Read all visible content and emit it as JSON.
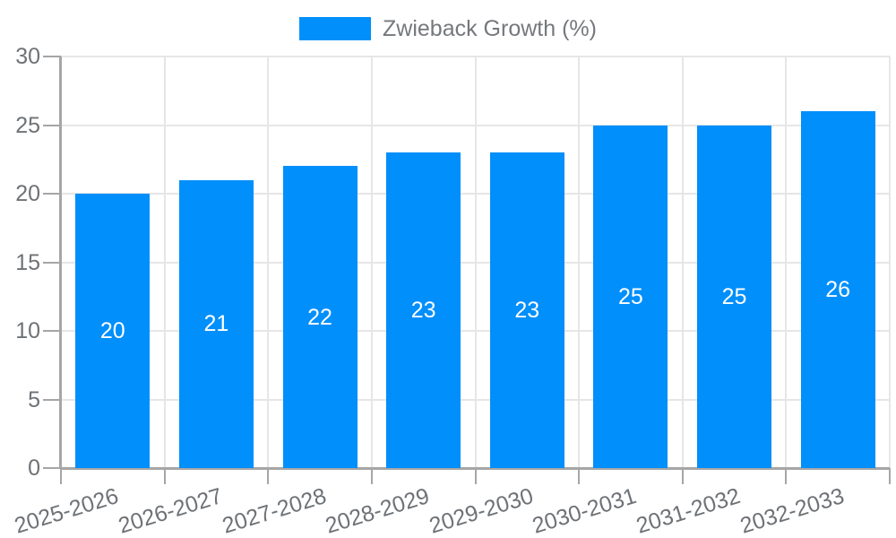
{
  "colors": {
    "bar": "#008ffb",
    "bar_label": "#ffffff",
    "axis_label": "#6e7276",
    "legend_label": "#75787c",
    "gridline": "#e6e6e6",
    "axis_line": "#a6a6a6"
  },
  "chart_data": {
    "type": "bar",
    "categories": [
      "2025-2026",
      "2026-2027",
      "2027-2028",
      "2028-2029",
      "2029-2030",
      "2030-2031",
      "2031-2032",
      "2032-2033"
    ],
    "series": [
      {
        "name": "Zwieback Growth (%)",
        "values": [
          20,
          21,
          22,
          23,
          23,
          25,
          25,
          26
        ]
      }
    ],
    "bar_value_labels": [
      20,
      21,
      22,
      23,
      23,
      25,
      25,
      26
    ],
    "yticks": [
      0,
      5,
      10,
      15,
      20,
      25,
      30
    ],
    "ylim": [
      0,
      30
    ],
    "grid": true,
    "legend_position": "top",
    "x_label_rotation_deg": -17
  }
}
